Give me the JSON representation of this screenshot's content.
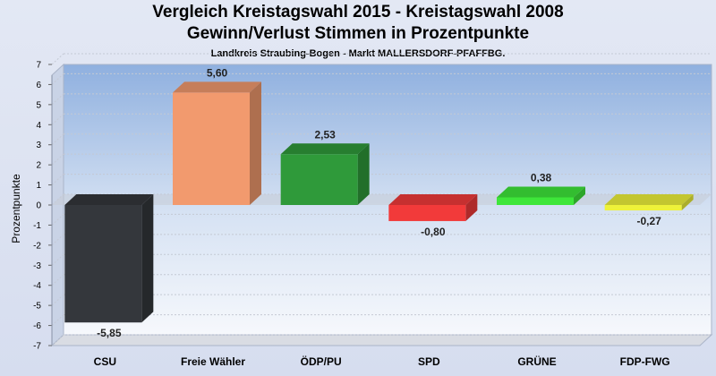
{
  "header": {
    "title_line1": "Vergleich Kreistagswahl 2015 - Kreistagswahl 2008",
    "title_line2": "Gewinn/Verlust Stimmen in Prozentpunkte",
    "subtitle": "Landkreis Straubing-Bogen - Markt MALLERSDORF-PFAFFBG."
  },
  "chart_data": {
    "type": "bar",
    "title": "Vergleich Kreistagswahl 2015 - Kreistagswahl 2008",
    "subtitle": "Gewinn/Verlust Stimmen in Prozentpunkte",
    "xlabel": "",
    "ylabel": "Prozentpunkte",
    "ylim": [
      -7,
      7
    ],
    "yticks": [
      7,
      6,
      5,
      4,
      3,
      2,
      1,
      0,
      -1,
      -2,
      -3,
      -4,
      -5,
      -6,
      -7
    ],
    "grid": true,
    "categories": [
      "CSU",
      "Freie Wähler",
      "ÖDP/PU",
      "SPD",
      "GRÜNE",
      "FDP-FWG"
    ],
    "values": [
      -5.85,
      5.6,
      2.53,
      -0.8,
      0.38,
      -0.27
    ],
    "value_labels": [
      "-5,85",
      "5,60",
      "2,53",
      "-0,80",
      "0,38",
      "-0,27"
    ],
    "colors": [
      "#34373c",
      "#f29a6e",
      "#2f9a3a",
      "#f23a3a",
      "#3ee63a",
      "#eef23a"
    ]
  }
}
